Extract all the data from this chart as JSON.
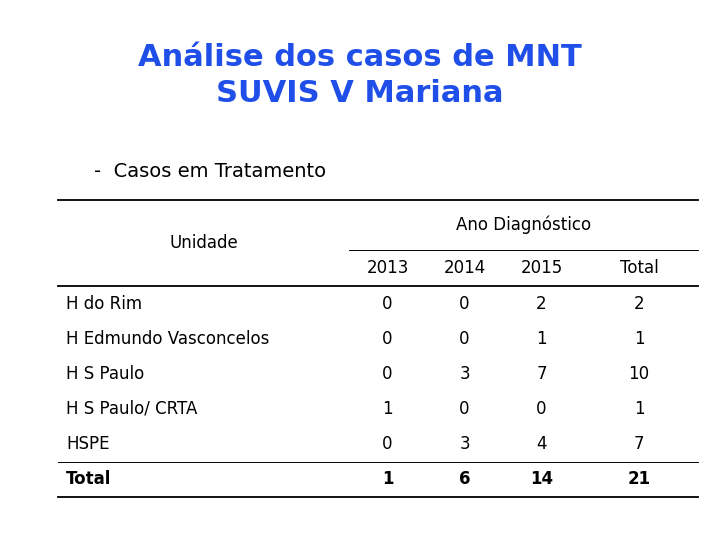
{
  "title_line1": "Análise dos casos de MNT",
  "title_line2": "SUVIS V Mariana",
  "subtitle": "-  Casos em Tratamento",
  "title_color": "#1f4fe8",
  "subtitle_color": "#000000",
  "col_header_main": "Ano Diagnóstico",
  "col_header_sub": [
    "2013",
    "2014",
    "2015",
    "Total"
  ],
  "row_header": "Unidade",
  "rows": [
    [
      "H do Rim",
      "0",
      "0",
      "2",
      "2"
    ],
    [
      "H Edmundo Vasconcelos",
      "0",
      "0",
      "1",
      "1"
    ],
    [
      "H S Paulo",
      "0",
      "3",
      "7",
      "10"
    ],
    [
      "H S Paulo/ CRTA",
      "1",
      "0",
      "0",
      "1"
    ],
    [
      "HSPE",
      "0",
      "3",
      "4",
      "7"
    ]
  ],
  "total_row": [
    "Total",
    "1",
    "6",
    "14",
    "21"
  ],
  "bg_color": "#ffffff",
  "table_text_color": "#000000",
  "font_size_title": 22,
  "font_size_subtitle": 14,
  "font_size_table": 12
}
